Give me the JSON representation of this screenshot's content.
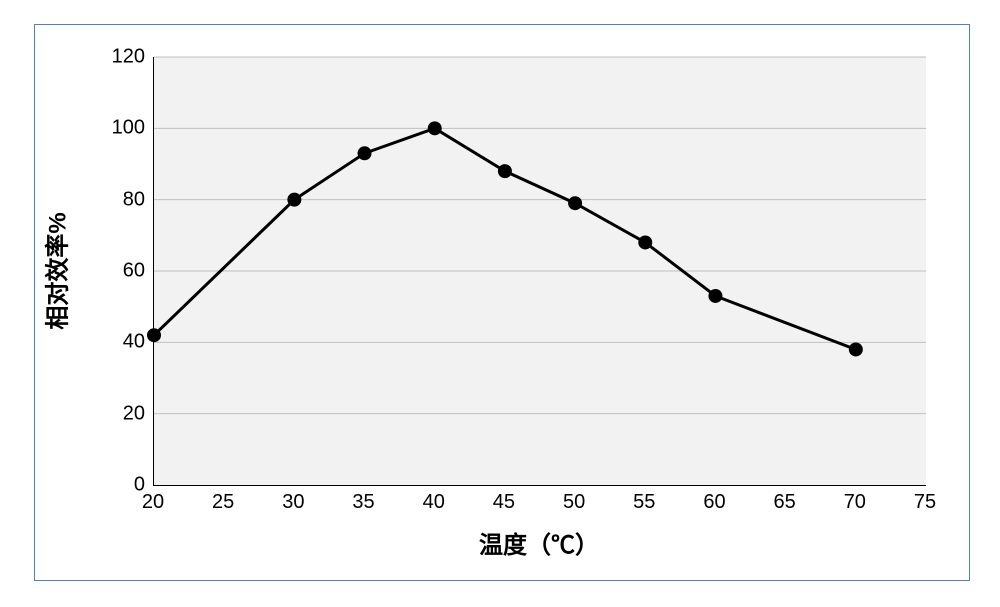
{
  "chart": {
    "type": "line",
    "background_color": "#ffffff",
    "border_color": "#4f81bd",
    "plot_bg_color": "#f2f2f2",
    "grid_color": "#bfbfbf",
    "axis_line_color": "#000000",
    "xlabel": "温度（℃）",
    "ylabel": "相对效率%",
    "label_fontsize": 24,
    "tick_fontsize": 20,
    "xlim": [
      20,
      75
    ],
    "ylim": [
      0,
      120
    ],
    "xticks": [
      20,
      25,
      30,
      35,
      40,
      45,
      50,
      55,
      60,
      65,
      70,
      75
    ],
    "yticks": [
      0,
      20,
      40,
      60,
      80,
      100,
      120
    ],
    "series": {
      "x": [
        20,
        30,
        35,
        40,
        45,
        50,
        55,
        60,
        70
      ],
      "y": [
        42,
        80,
        93,
        100,
        88,
        79,
        68,
        53,
        38
      ],
      "line_color": "#000000",
      "line_width": 3,
      "marker_color": "#000000",
      "marker_radius": 7
    }
  }
}
